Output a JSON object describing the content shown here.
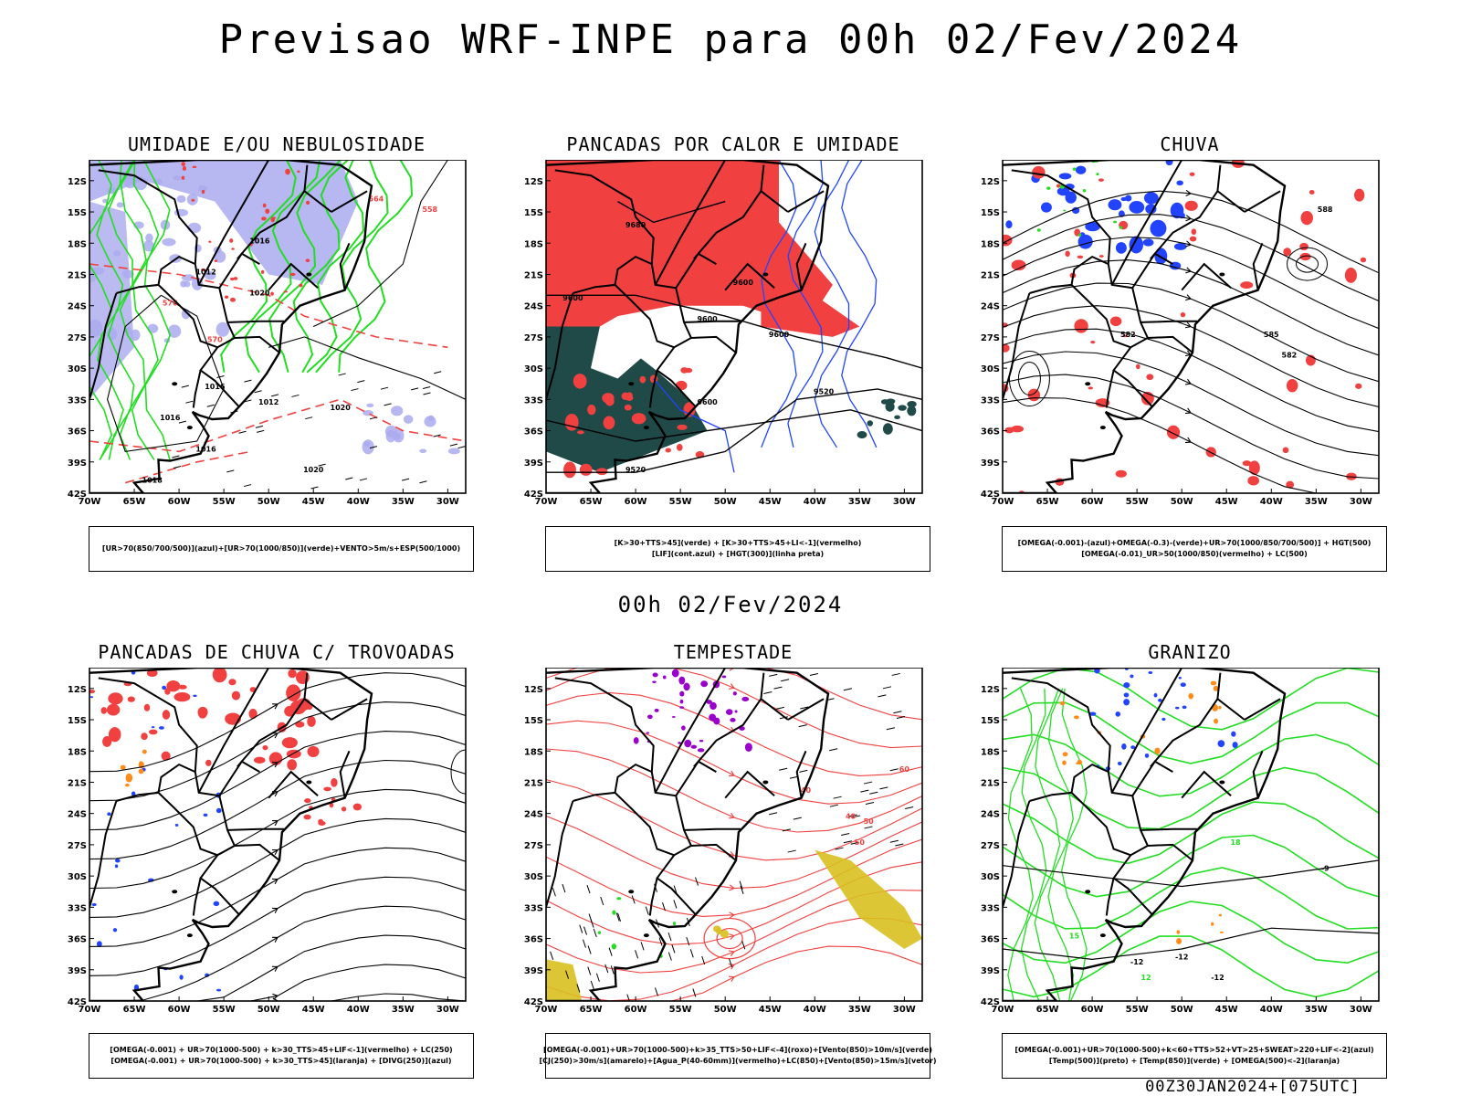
{
  "page": {
    "title": "Previsao WRF-INPE  para 00h 02/Fev/2024",
    "mid_title": "00h 02/Fev/2024",
    "footer": "00Z30JAN2024+[075UTC]"
  },
  "colors": {
    "red": "#f04040",
    "green": "#22dd22",
    "blue": "#2244ff",
    "lavender": "#aaaaee",
    "darkteal": "#1f4a48",
    "purple": "#9900cc",
    "yellow": "#d8c020",
    "orange": "#ff8c1a",
    "black": "#000000"
  },
  "chart_data": [
    {
      "type": "heatmap",
      "title": "UMIDADE E/OU NEBULOSIDADE",
      "xlim": [
        -70,
        -28
      ],
      "ylim": [
        -42,
        -10
      ],
      "xticks": [
        "70W",
        "65W",
        "60W",
        "55W",
        "50W",
        "45W",
        "40W",
        "35W",
        "30W"
      ],
      "yticks": [
        "12S",
        "15S",
        "18S",
        "21S",
        "24S",
        "27S",
        "30S",
        "33S",
        "36S",
        "39S",
        "42S"
      ],
      "legend": [
        "[UR>70(850/700/500)](azul)+[UR>70(1000/850)](verde)+VENTO>5m/s+ESP(500/1000)"
      ],
      "contour_labels": [
        "1016",
        "1012",
        "1020",
        "1016",
        "1012",
        "1016",
        "1016",
        "1020",
        "1020",
        "1018",
        "576",
        "570",
        "564",
        "558"
      ]
    },
    {
      "type": "heatmap",
      "title": "PANCADAS POR CALOR E UMIDADE",
      "xlim": [
        -70,
        -28
      ],
      "ylim": [
        -42,
        -10
      ],
      "xticks": [
        "70W",
        "65W",
        "60W",
        "55W",
        "50W",
        "45W",
        "40W",
        "35W",
        "30W"
      ],
      "yticks": [
        "12S",
        "15S",
        "18S",
        "21S",
        "24S",
        "27S",
        "30S",
        "33S",
        "36S",
        "39S",
        "42S"
      ],
      "legend": [
        "[K>30+TTS>45](verde) + [K>30+TTS>45+LI<-1](vermelho)",
        "[LIF](cont.azul) + [HGT(300)](linha preta)"
      ],
      "contour_labels": [
        "9680",
        "9600",
        "9600",
        "9600",
        "9600",
        "9520",
        "9520",
        "9600"
      ]
    },
    {
      "type": "heatmap",
      "title": "CHUVA",
      "xlim": [
        -70,
        -28
      ],
      "ylim": [
        -42,
        -10
      ],
      "xticks": [
        "70W",
        "65W",
        "60W",
        "55W",
        "50W",
        "45W",
        "40W",
        "35W",
        "30W"
      ],
      "yticks": [
        "12S",
        "15S",
        "18S",
        "21S",
        "24S",
        "27S",
        "30S",
        "33S",
        "36S",
        "39S",
        "42S"
      ],
      "legend": [
        "[OMEGA(-0.001)-(azul)+OMEGA(-0.3)-(verde)+UR>70(1000/850/700/500)] + HGT(500)",
        "[OMEGA(-0.01)_UR>50(1000/850)(vermelho) + LC(500)"
      ],
      "contour_labels": [
        "588",
        "585",
        "582",
        "582"
      ]
    },
    {
      "type": "heatmap",
      "title": "PANCADAS DE CHUVA C/ TROVOADAS",
      "xlim": [
        -70,
        -28
      ],
      "ylim": [
        -42,
        -10
      ],
      "xticks": [
        "70W",
        "65W",
        "60W",
        "55W",
        "50W",
        "45W",
        "40W",
        "35W",
        "30W"
      ],
      "yticks": [
        "12S",
        "15S",
        "18S",
        "21S",
        "24S",
        "27S",
        "30S",
        "33S",
        "36S",
        "39S",
        "42S"
      ],
      "legend": [
        "[OMEGA(-0.001) + UR>70(1000-500) + k>30_TTS>45+LIF<-1](vermelho) + LC(250)",
        "[OMEGA(-0.001) + UR>70(1000-500) + k>30_TTS>45](laranja) + [DIVG(250)](azul)"
      ],
      "contour_labels": []
    },
    {
      "type": "heatmap",
      "title": "TEMPESTADE",
      "xlim": [
        -70,
        -28
      ],
      "ylim": [
        -42,
        -10
      ],
      "xticks": [
        "70W",
        "65W",
        "60W",
        "55W",
        "50W",
        "45W",
        "40W",
        "35W",
        "30W"
      ],
      "yticks": [
        "12S",
        "15S",
        "18S",
        "21S",
        "24S",
        "27S",
        "30S",
        "33S",
        "36S",
        "39S",
        "42S"
      ],
      "legend": [
        "[OMEGA(-0.001)+UR>70(1000-500)+k>35_TTS>50+LIF<-4](roxo)+[Vento(850)>10m/s](verde)",
        "[CJ(250)>30m/s](amarelo)+[Agua_P(40-60mm)](vermelho)+LC(850)+[Vento(850)>15m/s](vetor)"
      ],
      "contour_labels": [
        "40",
        "50",
        "40",
        "50",
        "60"
      ]
    },
    {
      "type": "heatmap",
      "title": "GRANIZO",
      "xlim": [
        -70,
        -28
      ],
      "ylim": [
        -42,
        -10
      ],
      "xticks": [
        "70W",
        "65W",
        "60W",
        "55W",
        "50W",
        "45W",
        "40W",
        "35W",
        "30W"
      ],
      "yticks": [
        "12S",
        "15S",
        "18S",
        "21S",
        "24S",
        "27S",
        "30S",
        "33S",
        "36S",
        "39S",
        "42S"
      ],
      "legend": [
        "[OMEGA(-0.001)+UR>70(1000-500)+k<60+TTS>52+VT>25+SWEAT>220+LIF<-2](azul)",
        "[Temp(500)](preto) + [Temp(850)](verde) + [OMEGA(500)<-2](laranja)"
      ],
      "contour_labels": [
        "-12",
        "-12",
        "-9",
        "-12",
        "15",
        "18",
        "12"
      ]
    }
  ]
}
